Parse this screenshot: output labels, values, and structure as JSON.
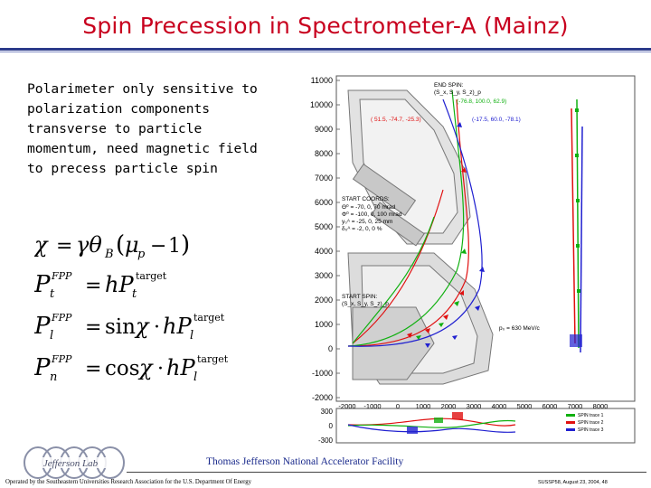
{
  "slide": {
    "title": "Spin Precession in Spectrometer-A (Mainz)",
    "intro_text": "Polarimeter only sensitive to\npolarization components\ntransverse to particle\nmomentum, need magnetic field\nto precess particle spin"
  },
  "equations": {
    "eq1": "χ = γθ_B(μ_p − 1)",
    "eq2": "P_t^FPP = hP_t^target",
    "eq3": "P_l^FPP = sinχ · hP_l^target",
    "eq4": "P_n^FPP = cosχ · hP_l^target"
  },
  "figure": {
    "main_y_ticks": [
      "11000",
      "10000",
      "9000",
      "8000",
      "7000",
      "6000",
      "5000",
      "4000",
      "3000",
      "2000",
      "1000",
      "0",
      "-1000",
      "-2000"
    ],
    "strip_y_ticks": [
      "300",
      "0",
      "-300"
    ],
    "x_ticks": [
      "-2000",
      "-1000",
      "0",
      "1000",
      "2000",
      "3000",
      "4000",
      "5000",
      "6000",
      "7000",
      "8000"
    ],
    "end_spin_label": "END SPIN:",
    "end_spin_sub": "(S_x, S_y, S_z)_p",
    "end_spin_values": [
      "(-76.8, 100.0, 62.9)",
      "( 51.5, -74.7, -25.3)",
      "(-17.5, 60.0, -78.1)"
    ],
    "start_coords_label": "START COORDS:",
    "start_coords_rows": [
      "Θ⁰ = -70, 0, 70 mrad",
      "Φ⁰ = -100, 0, 100 mrad",
      "y₀ᴬ = -25, 0, 25 mm",
      "δ₀ᴬ = -2, 0, 0 %"
    ],
    "start_spin_label": "START SPIN:",
    "start_spin_sub": "(S_x, S_y, S_z)_p",
    "momentum_label": "p₀ = 630 MeV/c",
    "legend": [
      "SPIN trace 1",
      "SPIN trace 2",
      "SPIN trace 3"
    ],
    "colors": {
      "red": "#e01010",
      "green": "#10b010",
      "blue": "#2020d0"
    }
  },
  "footer": {
    "logo_text": "Jefferson Lab",
    "lab": "Thomas Jefferson National Accelerator Facility",
    "operated": "Operated by the Southeastern Universities Research Association for the U.S. Department Of Energy",
    "page": "SUSSP58, August 23, 2004, 48"
  }
}
